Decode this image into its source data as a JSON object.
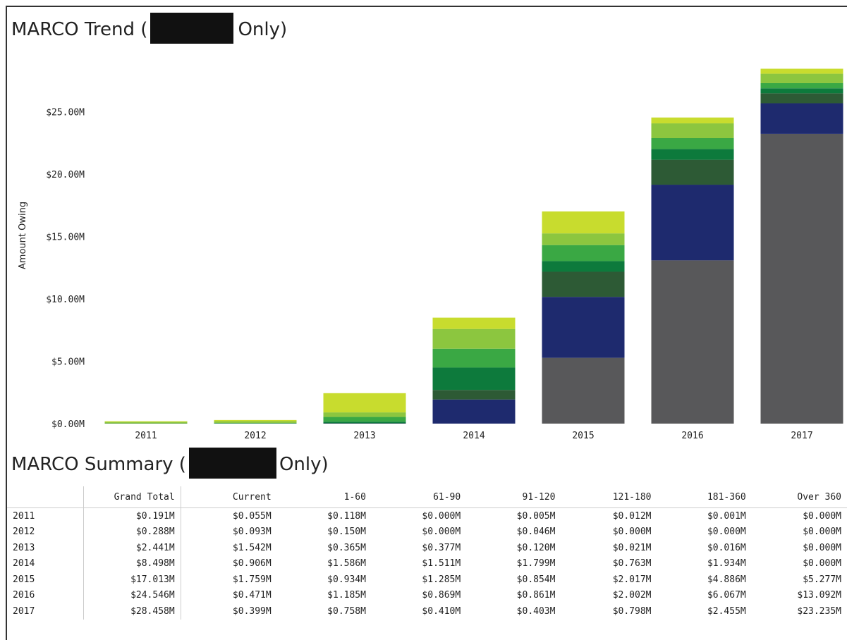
{
  "trend_title": {
    "before": "MARCO Trend (",
    "after": " Only)"
  },
  "summary_title": {
    "before": "MARCO Summary (",
    "after": " Only)"
  },
  "colors": {
    "Current": "#c8dc2e",
    "1-60": "#8cc63f",
    "61-90": "#3aa844",
    "91-120": "#0d7a3c",
    "121-180": "#2d5a35",
    "181-360": "#1e2a6e",
    "Over 360": "#58585a"
  },
  "chart_data": {
    "type": "bar",
    "stacked": true,
    "ylabel": "Amount Owing",
    "ylim": [
      0,
      28.6
    ],
    "yticks": [
      "$0.00M",
      "$5.00M",
      "$10.00M",
      "$15.00M",
      "$20.00M",
      "$25.00M"
    ],
    "yticks_values": [
      0,
      5,
      10,
      15,
      20,
      25
    ],
    "categories": [
      "2011",
      "2012",
      "2013",
      "2014",
      "2015",
      "2016",
      "2017"
    ],
    "series": [
      {
        "name": "Over 360",
        "values": [
          0.0,
          0.0,
          0.0,
          0.0,
          5.277,
          13.092,
          23.235
        ]
      },
      {
        "name": "181-360",
        "values": [
          0.001,
          0.0,
          0.016,
          1.934,
          4.886,
          6.067,
          2.455
        ]
      },
      {
        "name": "121-180",
        "values": [
          0.012,
          0.0,
          0.021,
          0.763,
          2.017,
          2.002,
          0.798
        ]
      },
      {
        "name": "91-120",
        "values": [
          0.005,
          0.046,
          0.12,
          1.799,
          0.854,
          0.861,
          0.403
        ]
      },
      {
        "name": "61-90",
        "values": [
          0.0,
          0.0,
          0.377,
          1.511,
          1.285,
          0.869,
          0.41
        ]
      },
      {
        "name": "1-60",
        "values": [
          0.118,
          0.15,
          0.365,
          1.586,
          0.934,
          1.185,
          0.758
        ]
      },
      {
        "name": "Current",
        "values": [
          0.055,
          0.093,
          1.542,
          0.906,
          1.759,
          0.471,
          0.399
        ]
      }
    ],
    "grid": false,
    "legend": "none"
  },
  "table": {
    "headers": [
      "",
      "Grand Total",
      "Current",
      "1-60",
      "61-90",
      "91-120",
      "121-180",
      "181-360",
      "Over 360"
    ],
    "rows": [
      [
        "2011",
        "$0.191M",
        "$0.055M",
        "$0.118M",
        "$0.000M",
        "$0.005M",
        "$0.012M",
        "$0.001M",
        "$0.000M"
      ],
      [
        "2012",
        "$0.288M",
        "$0.093M",
        "$0.150M",
        "$0.000M",
        "$0.046M",
        "$0.000M",
        "$0.000M",
        "$0.000M"
      ],
      [
        "2013",
        "$2.441M",
        "$1.542M",
        "$0.365M",
        "$0.377M",
        "$0.120M",
        "$0.021M",
        "$0.016M",
        "$0.000M"
      ],
      [
        "2014",
        "$8.498M",
        "$0.906M",
        "$1.586M",
        "$1.511M",
        "$1.799M",
        "$0.763M",
        "$1.934M",
        "$0.000M"
      ],
      [
        "2015",
        "$17.013M",
        "$1.759M",
        "$0.934M",
        "$1.285M",
        "$0.854M",
        "$2.017M",
        "$4.886M",
        "$5.277M"
      ],
      [
        "2016",
        "$24.546M",
        "$0.471M",
        "$1.185M",
        "$0.869M",
        "$0.861M",
        "$2.002M",
        "$6.067M",
        "$13.092M"
      ],
      [
        "2017",
        "$28.458M",
        "$0.399M",
        "$0.758M",
        "$0.410M",
        "$0.403M",
        "$0.798M",
        "$2.455M",
        "$23.235M"
      ]
    ]
  }
}
